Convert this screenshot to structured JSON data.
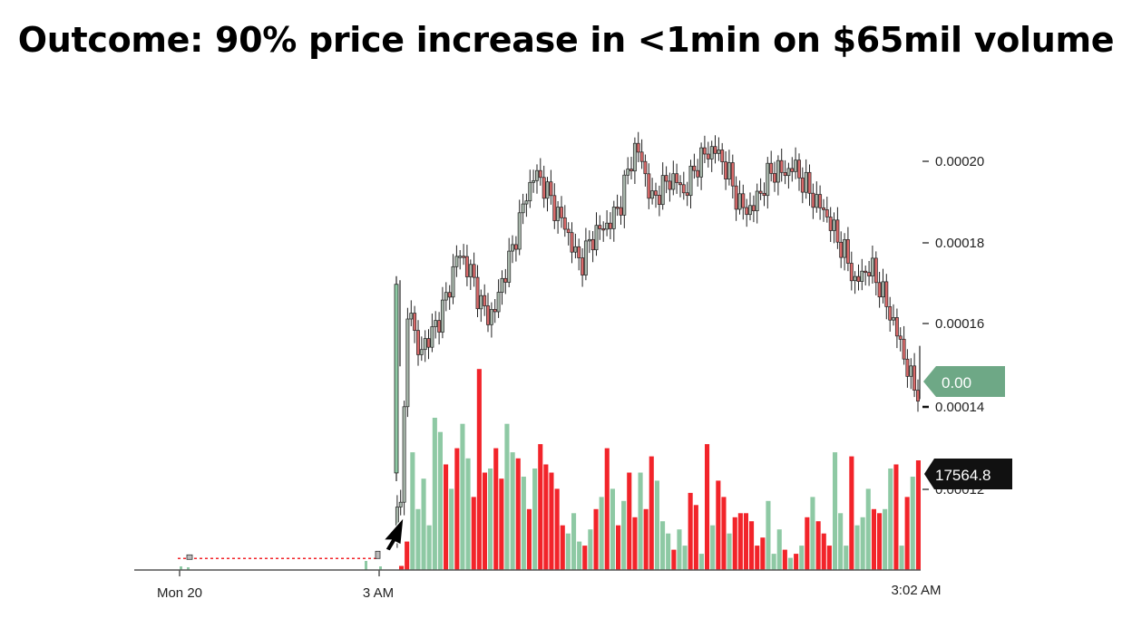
{
  "title": "Outcome: 90% price increase in <1min on $65mil volume",
  "chart_data": {
    "type": "candlestick+volume",
    "title": "Outcome: 90% price increase in <1min on $65mil volume",
    "x_tick_labels": [
      "Mon 20",
      "3 AM",
      "3:02 AM"
    ],
    "y_tick_labels": [
      "0.00020",
      "0.00018",
      "0.00016",
      "0.00014",
      "0.00012"
    ],
    "y_ticks": [
      0.0002,
      0.00018,
      0.00016,
      0.00014,
      0.00012
    ],
    "ylim": [
      0.000106,
      0.000211
    ],
    "price_tag": "0.00",
    "volume_tag": "17564.8",
    "colors": {
      "up": "#8ec9a4",
      "down": "#f2242a",
      "tag_price": "#6ea886",
      "tag_volume": "#111111",
      "axis": "#555555"
    },
    "pre_event_price": 0.000108,
    "price_path": [
      0.000108,
      0.000122,
      0.00017,
      0.000152,
      0.000156,
      0.000158,
      0.000163,
      0.000168,
      0.000177,
      0.000176,
      0.000172,
      0.000166,
      0.000162,
      0.000164,
      0.000172,
      0.000177,
      0.000185,
      0.000192,
      0.000197,
      0.000195,
      0.000191,
      0.000187,
      0.000184,
      0.000178,
      0.000175,
      0.00018,
      0.000183,
      0.000184,
      0.000186,
      0.00019,
      0.000198,
      0.000204,
      0.000198,
      0.00019,
      0.000193,
      0.000195,
      0.000196,
      0.000192,
      0.000196,
      0.0002,
      0.000202,
      0.000203,
      0.0002,
      0.000196,
      0.00019,
      0.000188,
      0.000189,
      0.000193,
      0.000197,
      0.000198,
      0.000197,
      0.000199,
      0.000196,
      0.000193,
      0.00019,
      0.000188,
      0.000184,
      0.00018,
      0.000176,
      0.00017,
      0.000173,
      0.000174,
      0.00017,
      0.000165,
      0.00016,
      0.000154,
      0.000147,
      0.000144
    ],
    "volume_relative": [
      0.02,
      0.14,
      0.58,
      0.3,
      0.45,
      0.22,
      0.75,
      0.68,
      0.52,
      0.4,
      0.6,
      0.72,
      0.55,
      0.36,
      0.99,
      0.48,
      0.5,
      0.6,
      0.45,
      0.72,
      0.58,
      0.55,
      0.46,
      0.3,
      0.5,
      0.62,
      0.52,
      0.48,
      0.4,
      0.22,
      0.18,
      0.28,
      0.14,
      0.12,
      0.2,
      0.3,
      0.36,
      0.6,
      0.4,
      0.22,
      0.34,
      0.48,
      0.26,
      0.48,
      0.3,
      0.56,
      0.44,
      0.24,
      0.18,
      0.1,
      0.2,
      0.12,
      0.38,
      0.32,
      0.08,
      0.62,
      0.22,
      0.44,
      0.36,
      0.18,
      0.26,
      0.28,
      0.28,
      0.24,
      0.12,
      0.16,
      0.34,
      0.08,
      0.2,
      0.1,
      0.06,
      0.08,
      0.12,
      0.26,
      0.36,
      0.24,
      0.18,
      0.12,
      0.58,
      0.28,
      0.12,
      0.56,
      0.22,
      0.26,
      0.4,
      0.3,
      0.28,
      0.3,
      0.5,
      0.52,
      0.12,
      0.36,
      0.46,
      0.54
    ]
  }
}
